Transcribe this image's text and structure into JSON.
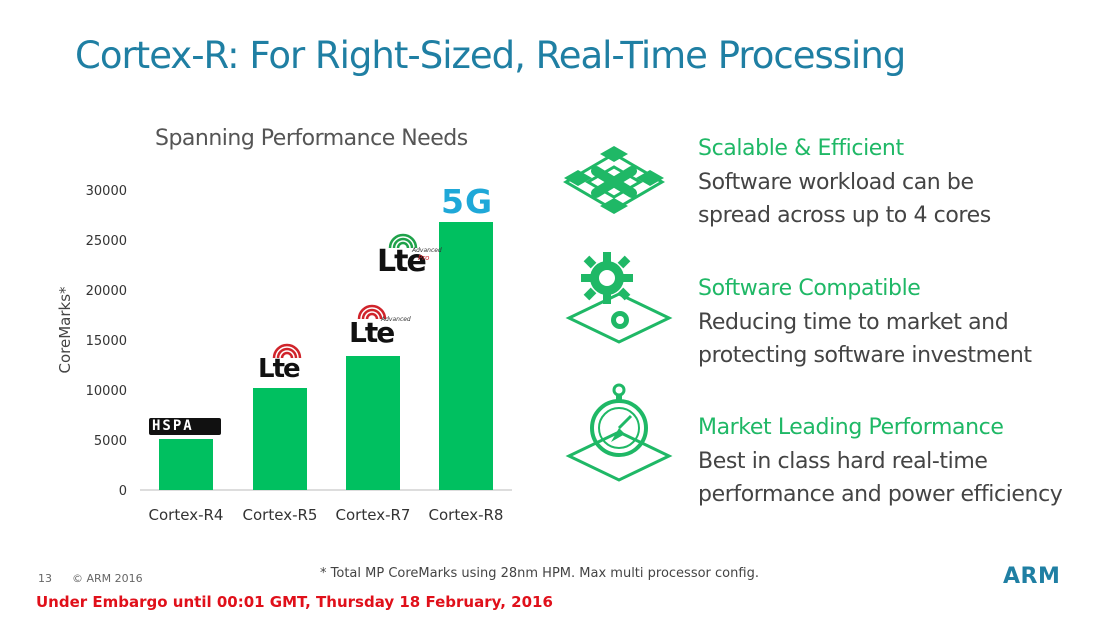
{
  "slide": {
    "title": "Cortex-R: For Right-Sized, Real-Time Processing",
    "footnote": "* Total MP CoreMarks using 28nm HPM. Max multi processor config.",
    "page_number": "13",
    "copyright": "© ARM 2016",
    "embargo": "Under Embargo until 00:01 GMT, Thursday 18 February, 2016",
    "logo_text": "ARM"
  },
  "colors": {
    "accent": "#1fb866",
    "title": "#1f7fa3",
    "bar": "#00c060",
    "embargo": "#e0101a",
    "fiveg": "#1fa8d8"
  },
  "badges": {
    "hspa": "HSPA",
    "lte": "Lte",
    "lte_advanced": "Advanced",
    "lte_pro": "Pro",
    "fiveg": "5G"
  },
  "features": [
    {
      "title": "Scalable & Efficient",
      "line1": "Software workload can be",
      "line2": "spread across up to 4 cores",
      "icon": "cross-cubes-icon"
    },
    {
      "title": "Software Compatible",
      "line1": "Reducing time to market and",
      "line2": "protecting software investment",
      "icon": "gears-icon"
    },
    {
      "title": "Market Leading Performance",
      "line1": "Best in class hard real-time",
      "line2": "performance and power efficiency",
      "icon": "stopwatch-icon"
    }
  ],
  "chart_data": {
    "type": "bar",
    "title": "Spanning Performance Needs",
    "categories": [
      "Cortex-R4",
      "Cortex-R5",
      "Cortex-R7",
      "Cortex-R8"
    ],
    "values": [
      5100,
      10200,
      13400,
      26800
    ],
    "ylabel": "CoreMarks*",
    "xlabel": "",
    "ylim": [
      0,
      30000
    ],
    "yticks": [
      "0",
      "5000",
      "10000",
      "15000",
      "20000",
      "25000",
      "30000"
    ]
  }
}
